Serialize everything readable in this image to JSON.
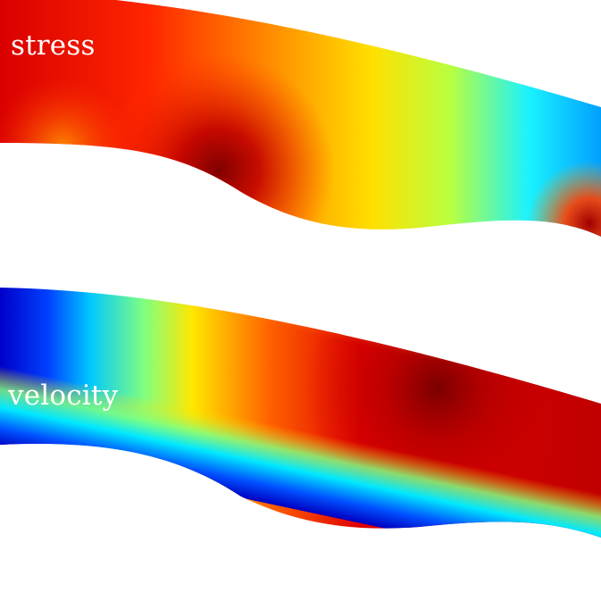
{
  "panels": [
    {
      "label": "stress",
      "colormap": "jet"
    },
    {
      "label": "velocity",
      "colormap": "jet"
    }
  ]
}
